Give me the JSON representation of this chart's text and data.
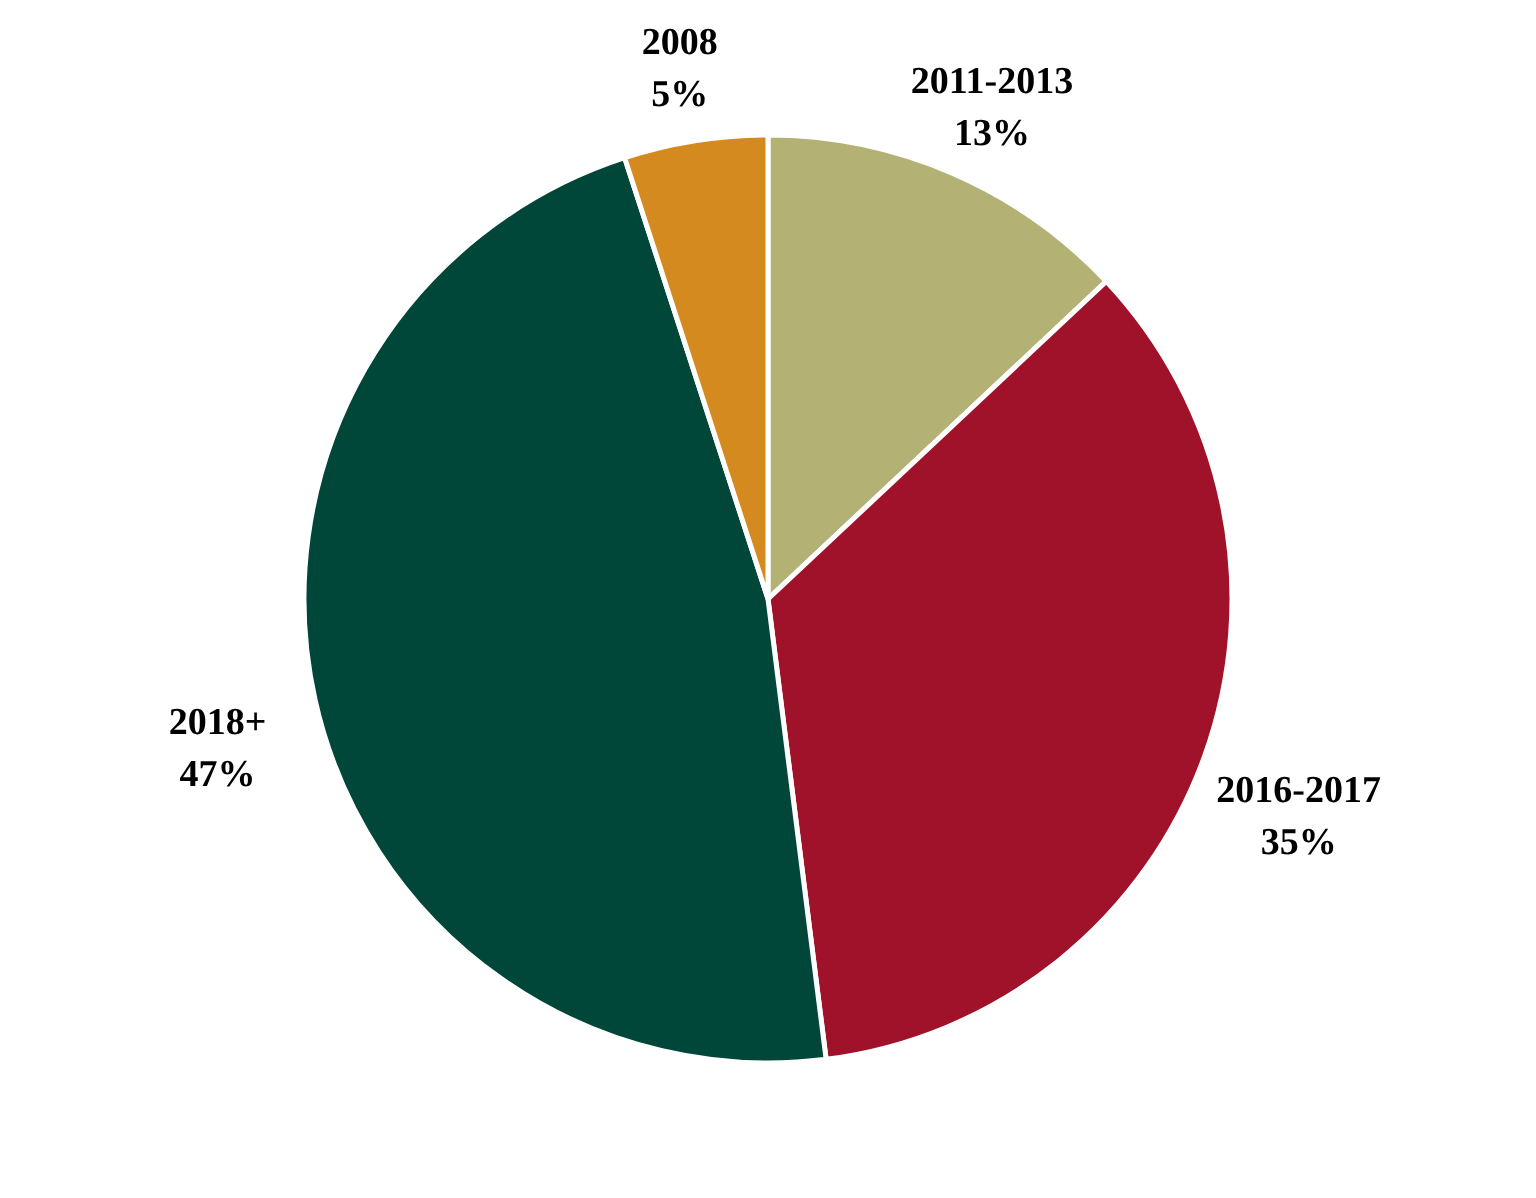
{
  "chart_data": {
    "type": "pie",
    "categories": [
      "2011-2013",
      "2016-2017",
      "2018+",
      "2008"
    ],
    "values": [
      13,
      35,
      47,
      5
    ],
    "colors": [
      "#b3b274",
      "#a0122a",
      "#00473a",
      "#d58a20"
    ],
    "value_labels": [
      "13%",
      "35%",
      "47%",
      "5%"
    ]
  }
}
